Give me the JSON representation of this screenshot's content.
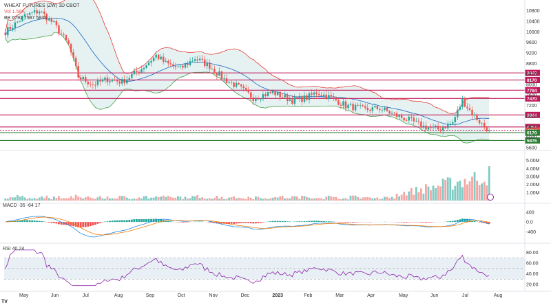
{
  "header": {
    "symbol_line": "WHEAT FUTURES (ZW) 1D CBOT",
    "volume_line": "Vol 1.58K",
    "bb_line": "BB 6792 7587 5833"
  },
  "macd_legend": "MACD -35 -64 17",
  "rsi_legend": "RSI 40.24",
  "colors": {
    "up": "#26a69a",
    "down": "#ef5350",
    "level_line": "#c2185b",
    "support_line": "#2e7d32",
    "bb_upper": "#e53935",
    "bb_lower": "#43a047",
    "bb_basis": "#1565c0",
    "macd": "#1e88e5",
    "signal": "#f57c00",
    "rsi": "#8e24aa"
  },
  "chart_data": [
    {
      "type": "candlestick",
      "ylim": [
        5600,
        11000
      ],
      "yticks": [
        "10800",
        "10400",
        "10000",
        "9600",
        "9200",
        "8800",
        "8400",
        "8000",
        "7600",
        "7200",
        "6800",
        "6400",
        "6000",
        "5600"
      ],
      "price_levels": [
        {
          "value": 8440,
          "label": "8440",
          "kind": "resistance"
        },
        {
          "value": 8170,
          "label": "8170",
          "kind": "resistance"
        },
        {
          "value": 7784,
          "label": "7784",
          "kind": "resistance"
        },
        {
          "value": 7470,
          "label": "7470",
          "kind": "resistance"
        },
        {
          "value": 6844,
          "label": "6844",
          "kind": "resistance"
        },
        {
          "value": 6387,
          "label": "6387",
          "kind": "resistance"
        },
        {
          "value": 6254,
          "label": "6254",
          "kind": "last-price"
        },
        {
          "value": 6170,
          "label": "6170",
          "kind": "support"
        },
        {
          "value": 5876,
          "label": "5876",
          "kind": "support"
        }
      ],
      "x_labels": [
        "May",
        "Jun",
        "Jul",
        "Aug",
        "Sep",
        "Oct",
        "Nov",
        "Dec",
        "2023",
        "Feb",
        "Mar",
        "Apr",
        "May",
        "Jun",
        "Jul",
        "Aug"
      ],
      "close_anchors": [
        [
          0,
          10000
        ],
        [
          8,
          10600
        ],
        [
          14,
          10800
        ],
        [
          20,
          10300
        ],
        [
          26,
          9500
        ],
        [
          30,
          8300
        ],
        [
          36,
          8000
        ],
        [
          42,
          8200
        ],
        [
          48,
          8100
        ],
        [
          56,
          8600
        ],
        [
          62,
          9100
        ],
        [
          66,
          8800
        ],
        [
          72,
          8600
        ],
        [
          78,
          9000
        ],
        [
          84,
          8700
        ],
        [
          90,
          8200
        ],
        [
          96,
          7900
        ],
        [
          102,
          7500
        ],
        [
          110,
          7700
        ],
        [
          118,
          7400
        ],
        [
          124,
          7500
        ],
        [
          128,
          7700
        ],
        [
          134,
          7500
        ],
        [
          140,
          7200
        ],
        [
          148,
          7050
        ],
        [
          154,
          7100
        ],
        [
          160,
          6850
        ],
        [
          166,
          6650
        ],
        [
          172,
          6400
        ],
        [
          178,
          6300
        ],
        [
          184,
          6550
        ],
        [
          188,
          7400
        ],
        [
          192,
          6900
        ],
        [
          196,
          6500
        ],
        [
          199,
          6254
        ]
      ]
    },
    {
      "type": "bar",
      "name": "volume",
      "yticks": [
        "5.00M",
        "4.00M",
        "3.00M",
        "2.00M",
        "1.00M"
      ],
      "ylim": [
        0,
        6
      ]
    },
    {
      "type": "line",
      "name": "macd",
      "yticks": [
        "400",
        "0.0",
        "-400"
      ],
      "ylim": [
        -700,
        650
      ]
    },
    {
      "type": "line",
      "name": "rsi",
      "yticks": [
        "80.00",
        "60.00",
        "40.00",
        "20.00"
      ],
      "ylim": [
        15,
        90
      ],
      "band": [
        30,
        70
      ]
    }
  ]
}
